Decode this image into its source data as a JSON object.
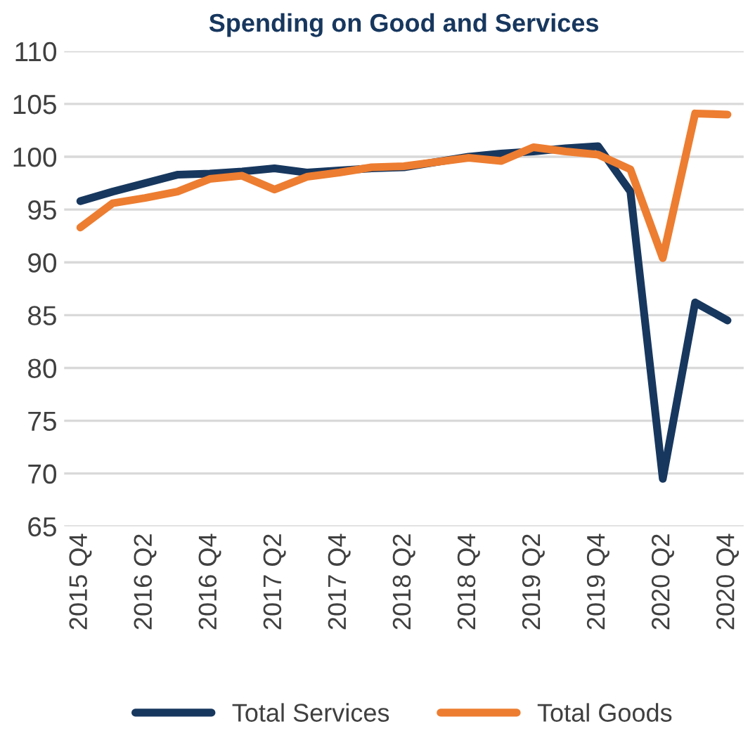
{
  "chart_data": {
    "type": "line",
    "title": "Spending on Good and Services",
    "categories": [
      "2015 Q4",
      null,
      "2016 Q2",
      null,
      "2016 Q4",
      null,
      "2017 Q2",
      null,
      "2017 Q4",
      null,
      "2018 Q2",
      null,
      "2018 Q4",
      null,
      "2019 Q2",
      null,
      "2019 Q4",
      null,
      "2020 Q2",
      null,
      "2020 Q4"
    ],
    "series": [
      {
        "name": "Total Services",
        "color": "#17375e",
        "values": [
          95.8,
          96.7,
          97.5,
          98.3,
          98.4,
          98.6,
          98.9,
          98.5,
          98.7,
          98.9,
          99.0,
          99.5,
          100.0,
          100.3,
          100.5,
          100.8,
          101.0,
          96.7,
          69.5,
          86.2,
          84.5
        ]
      },
      {
        "name": "Total Goods",
        "color": "#ed7d31",
        "values": [
          93.3,
          95.6,
          96.1,
          96.7,
          97.9,
          98.2,
          96.9,
          98.1,
          98.5,
          99.0,
          99.1,
          99.5,
          99.9,
          99.6,
          100.9,
          100.5,
          100.2,
          98.8,
          90.4,
          104.1,
          104.0
        ]
      }
    ],
    "ylim": [
      65,
      110
    ],
    "yticks": [
      65,
      70,
      75,
      80,
      85,
      90,
      95,
      100,
      105,
      110
    ],
    "grid": "y",
    "legend": "bottom",
    "marker": "none",
    "line_style": "solid"
  }
}
